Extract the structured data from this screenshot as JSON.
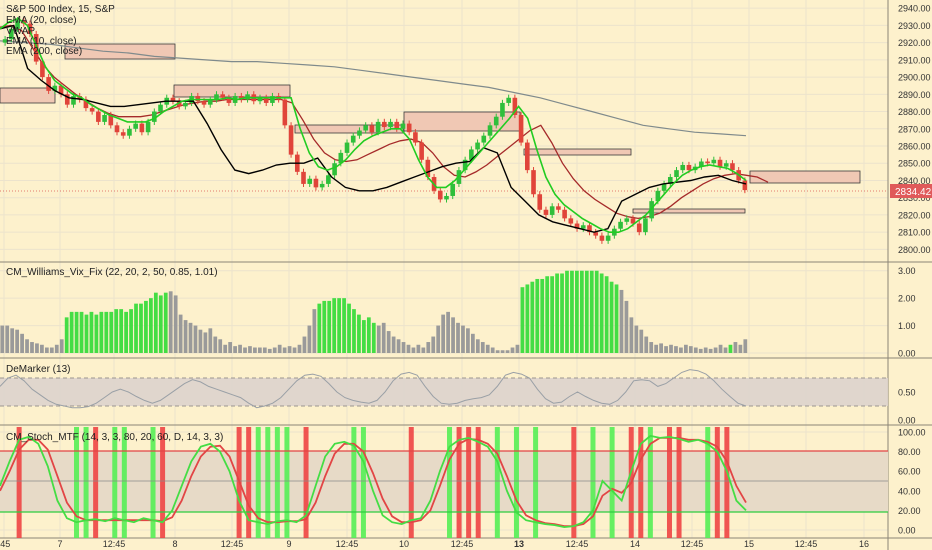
{
  "chart_data": [
    {
      "type": "candlestick",
      "title": "S&P 500 Index, 15, S&P",
      "legend": [
        "EMA (20, close)",
        "VWAP",
        "EMA (10, close)",
        "EMA (200, close)"
      ],
      "y_ticks": [
        "2940.00",
        "2930.00",
        "2920.00",
        "2910.00",
        "2900.00",
        "2890.00",
        "2880.00",
        "2870.00",
        "2860.00",
        "2850.00",
        "2840.00",
        "2830.00",
        "2820.00",
        "2810.00",
        "2800.00"
      ],
      "ylim": [
        2795,
        2943
      ],
      "last_price": "2834.42",
      "x_ticks": [
        ":45",
        "7",
        "12:45",
        "8",
        "12:45",
        "9",
        "12:45",
        "10",
        "12:45",
        "13",
        "12:45",
        "14",
        "12:45",
        "15",
        "12:45",
        "16"
      ],
      "closes": [
        2922,
        2928,
        2933,
        2931,
        2925,
        2909,
        2900,
        2892,
        2895,
        2890,
        2884,
        2889,
        2887,
        2882,
        2880,
        2874,
        2878,
        2872,
        2868,
        2866,
        2870,
        2873,
        2868,
        2874,
        2880,
        2884,
        2888,
        2886,
        2883,
        2885,
        2889,
        2886,
        2884,
        2887,
        2890,
        2888,
        2885,
        2889,
        2887,
        2890,
        2886,
        2888,
        2885,
        2889,
        2887,
        2872,
        2855,
        2845,
        2838,
        2841,
        2836,
        2838,
        2843,
        2850,
        2856,
        2862,
        2866,
        2869,
        2872,
        2868,
        2874,
        2871,
        2874,
        2870,
        2873,
        2868,
        2862,
        2852,
        2842,
        2834,
        2829,
        2831,
        2838,
        2846,
        2852,
        2858,
        2862,
        2866,
        2872,
        2877,
        2885,
        2888,
        2878,
        2862,
        2846,
        2832,
        2823,
        2820,
        2825,
        2823,
        2818,
        2815,
        2812,
        2814,
        2810,
        2808,
        2805,
        2808,
        2812,
        2816,
        2818,
        2815,
        2810,
        2818,
        2828,
        2834,
        2838,
        2842,
        2846,
        2849,
        2846,
        2848,
        2851,
        2850,
        2852,
        2848,
        2850,
        2846,
        2840,
        2834.42
      ],
      "ema10": [
        2928,
        2932,
        2934,
        2930,
        2918,
        2906,
        2898,
        2894,
        2890,
        2888,
        2884,
        2881,
        2878,
        2876,
        2874,
        2874,
        2874,
        2876,
        2880,
        2883,
        2886,
        2887,
        2887,
        2887,
        2887,
        2888,
        2887,
        2888,
        2888,
        2888,
        2888,
        2888,
        2888,
        2870,
        2856,
        2848,
        2846,
        2848,
        2852,
        2858,
        2863,
        2866,
        2868,
        2870,
        2870,
        2864,
        2852,
        2842,
        2836,
        2836,
        2840,
        2846,
        2852,
        2858,
        2864,
        2870,
        2876,
        2883,
        2876,
        2858,
        2842,
        2832,
        2826,
        2822,
        2818,
        2815,
        2812,
        2810,
        2810,
        2812,
        2816,
        2820,
        2826,
        2832,
        2838,
        2843,
        2846,
        2848,
        2849,
        2848,
        2847,
        2844,
        2840
      ],
      "ema20": [
        2929,
        2930,
        2927,
        2917,
        2907,
        2900,
        2895,
        2890,
        2886,
        2882,
        2879,
        2877,
        2877,
        2877,
        2878,
        2880,
        2882,
        2884,
        2885,
        2886,
        2886,
        2887,
        2887,
        2887,
        2887,
        2887,
        2887,
        2885,
        2875,
        2864,
        2856,
        2852,
        2851,
        2852,
        2855,
        2858,
        2861,
        2863,
        2864,
        2862,
        2856,
        2848,
        2843,
        2842,
        2845,
        2849,
        2854,
        2859,
        2864,
        2869,
        2872,
        2862,
        2850,
        2841,
        2834,
        2829,
        2825,
        2821,
        2819,
        2818,
        2819,
        2821,
        2825,
        2830,
        2834,
        2838,
        2841,
        2843,
        2844,
        2843,
        2842,
        2839
      ],
      "ema200": [
        2921,
        2920,
        2919,
        2917,
        2915,
        2914,
        2912,
        2911,
        2910,
        2909,
        2909,
        2908,
        2907,
        2906,
        2904,
        2902,
        2900,
        2898,
        2896,
        2894,
        2891,
        2888,
        2884,
        2880,
        2876,
        2872,
        2870,
        2868,
        2867,
        2866
      ],
      "vwap": [
        2928,
        2930,
        2905,
        2898,
        2892,
        2888,
        2887,
        2885,
        2883,
        2883,
        2884,
        2885,
        2886,
        2886,
        2886,
        2873,
        2858,
        2846,
        2844,
        2846,
        2849,
        2850,
        2850,
        2853,
        2842,
        2836,
        2834,
        2834,
        2836,
        2839,
        2842,
        2845,
        2848,
        2850,
        2851,
        2859,
        2856,
        2836,
        2828,
        2820,
        2816,
        2814,
        2812,
        2810,
        2812,
        2828,
        2832,
        2836,
        2838,
        2839,
        2840,
        2842,
        2843,
        2840,
        2838
      ]
    },
    {
      "type": "bar",
      "title": "CM_Williams_Vix_Fix (22, 20, 2, 50, 0.85, 1.01)",
      "y_ticks": [
        "3.00",
        "2.00",
        "1.00",
        "0.00"
      ],
      "ylim": [
        0,
        3.1
      ],
      "values": [
        1.0,
        1.0,
        0.9,
        0.85,
        0.7,
        0.5,
        0.4,
        0.35,
        0.3,
        0.2,
        0.2,
        0.3,
        0.5,
        1.3,
        1.5,
        1.5,
        1.5,
        1.4,
        1.5,
        1.4,
        1.5,
        1.5,
        1.5,
        1.6,
        1.6,
        1.5,
        1.6,
        1.8,
        1.8,
        1.9,
        2.0,
        2.2,
        2.1,
        2.2,
        2.25,
        2.1,
        1.4,
        1.2,
        1.1,
        1.0,
        0.85,
        0.75,
        0.9,
        0.6,
        0.5,
        0.3,
        0.4,
        0.25,
        0.3,
        0.2,
        0.25,
        0.2,
        0.2,
        0.2,
        0.15,
        0.2,
        0.3,
        0.2,
        0.25,
        0.2,
        0.3,
        0.6,
        1.0,
        1.6,
        1.8,
        1.9,
        1.9,
        2.0,
        2.0,
        2.0,
        1.8,
        1.6,
        1.4,
        1.2,
        1.3,
        1.1,
        1.0,
        1.1,
        0.8,
        0.6,
        0.5,
        0.4,
        0.3,
        0.2,
        0.3,
        0.2,
        0.4,
        0.6,
        1.0,
        1.4,
        1.5,
        1.3,
        1.1,
        1.0,
        0.9,
        0.7,
        0.5,
        0.4,
        0.3,
        0.2,
        0.1,
        0.1,
        0.1,
        0.2,
        0.3,
        2.4,
        2.5,
        2.6,
        2.7,
        2.7,
        2.8,
        2.8,
        2.9,
        2.9,
        3.0,
        3.0,
        3.0,
        3.0,
        3.0,
        3.0,
        3.0,
        2.9,
        2.8,
        2.6,
        2.5,
        2.3,
        1.9,
        1.3,
        1.0,
        0.85,
        0.6,
        0.4,
        0.3,
        0.35,
        0.25,
        0.3,
        0.25,
        0.2,
        0.3,
        0.25,
        0.2,
        0.15,
        0.2,
        0.15,
        0.2,
        0.3,
        0.2,
        0.3,
        0.4,
        0.3,
        0.5
      ],
      "green_ranges": [
        [
          13,
          33
        ],
        [
          64,
          75
        ],
        [
          105,
          124
        ],
        [
          147,
          147
        ]
      ]
    },
    {
      "type": "line",
      "title": "DeMarker (13)",
      "y_ticks": [
        "0.50",
        "0.00"
      ],
      "ylim": [
        0,
        1
      ],
      "levels": [
        0.7,
        0.3
      ],
      "values": [
        0.6,
        0.75,
        0.8,
        0.7,
        0.55,
        0.45,
        0.35,
        0.28,
        0.25,
        0.22,
        0.22,
        0.24,
        0.3,
        0.4,
        0.5,
        0.55,
        0.5,
        0.42,
        0.35,
        0.3,
        0.35,
        0.45,
        0.55,
        0.65,
        0.72,
        0.68,
        0.6,
        0.55,
        0.5,
        0.45,
        0.4,
        0.3,
        0.22,
        0.25,
        0.3,
        0.4,
        0.55,
        0.7,
        0.8,
        0.82,
        0.78,
        0.65,
        0.5,
        0.4,
        0.35,
        0.32,
        0.3,
        0.35,
        0.5,
        0.7,
        0.82,
        0.85,
        0.8,
        0.6,
        0.42,
        0.3,
        0.28,
        0.3,
        0.35,
        0.38,
        0.4,
        0.45,
        0.6,
        0.8,
        0.85,
        0.82,
        0.75,
        0.55,
        0.38,
        0.3,
        0.32,
        0.42,
        0.5,
        0.42,
        0.35,
        0.3,
        0.28,
        0.35,
        0.5,
        0.7,
        0.72,
        0.7,
        0.6,
        0.65,
        0.75,
        0.85,
        0.9,
        0.88,
        0.82,
        0.7,
        0.55,
        0.42,
        0.3,
        0.25
      ]
    },
    {
      "type": "line",
      "title": "CM_Stoch_MTF (14, 3, 3, 80, 20, 60, D, 14, 3, 3)",
      "y_ticks": [
        "100.00",
        "80.00",
        "60.00",
        "40.00",
        "20.00",
        "0.00"
      ],
      "ylim": [
        0,
        100
      ],
      "levels": [
        80,
        60,
        20
      ],
      "k_values": [
        45,
        70,
        92,
        95,
        88,
        65,
        30,
        12,
        8,
        10,
        11,
        9,
        12,
        10,
        8,
        12,
        10,
        8,
        20,
        45,
        70,
        85,
        88,
        80,
        60,
        30,
        10,
        8,
        6,
        9,
        10,
        8,
        15,
        45,
        75,
        88,
        90,
        86,
        70,
        40,
        15,
        8,
        6,
        10,
        12,
        30,
        60,
        85,
        92,
        94,
        90,
        85,
        70,
        40,
        18,
        10,
        8,
        6,
        5,
        3,
        4,
        8,
        20,
        50,
        40,
        30,
        60,
        88,
        96,
        94,
        95,
        93,
        90,
        92,
        88,
        80,
        60,
        30,
        20
      ],
      "d_values": [
        40,
        60,
        82,
        92,
        92,
        82,
        55,
        28,
        14,
        10,
        10,
        10,
        10,
        10,
        10,
        10,
        10,
        9,
        13,
        30,
        55,
        75,
        85,
        86,
        75,
        50,
        25,
        12,
        8,
        8,
        9,
        9,
        11,
        28,
        55,
        78,
        88,
        88,
        80,
        58,
        32,
        14,
        8,
        8,
        10,
        20,
        45,
        72,
        88,
        93,
        92,
        88,
        78,
        55,
        30,
        15,
        10,
        7,
        6,
        4,
        4,
        6,
        14,
        35,
        42,
        38,
        48,
        72,
        88,
        94,
        94,
        94,
        92,
        92,
        90,
        85,
        70,
        45,
        28
      ],
      "red_markers": [
        2,
        10,
        17,
        25,
        26,
        32,
        43,
        48,
        49,
        50,
        60,
        66,
        67,
        70,
        71,
        75,
        76
      ],
      "green_markers": [
        8,
        9,
        12,
        13,
        16,
        27,
        28,
        29,
        30,
        37,
        38,
        47,
        52,
        54,
        56,
        62,
        64,
        68,
        74
      ]
    }
  ]
}
